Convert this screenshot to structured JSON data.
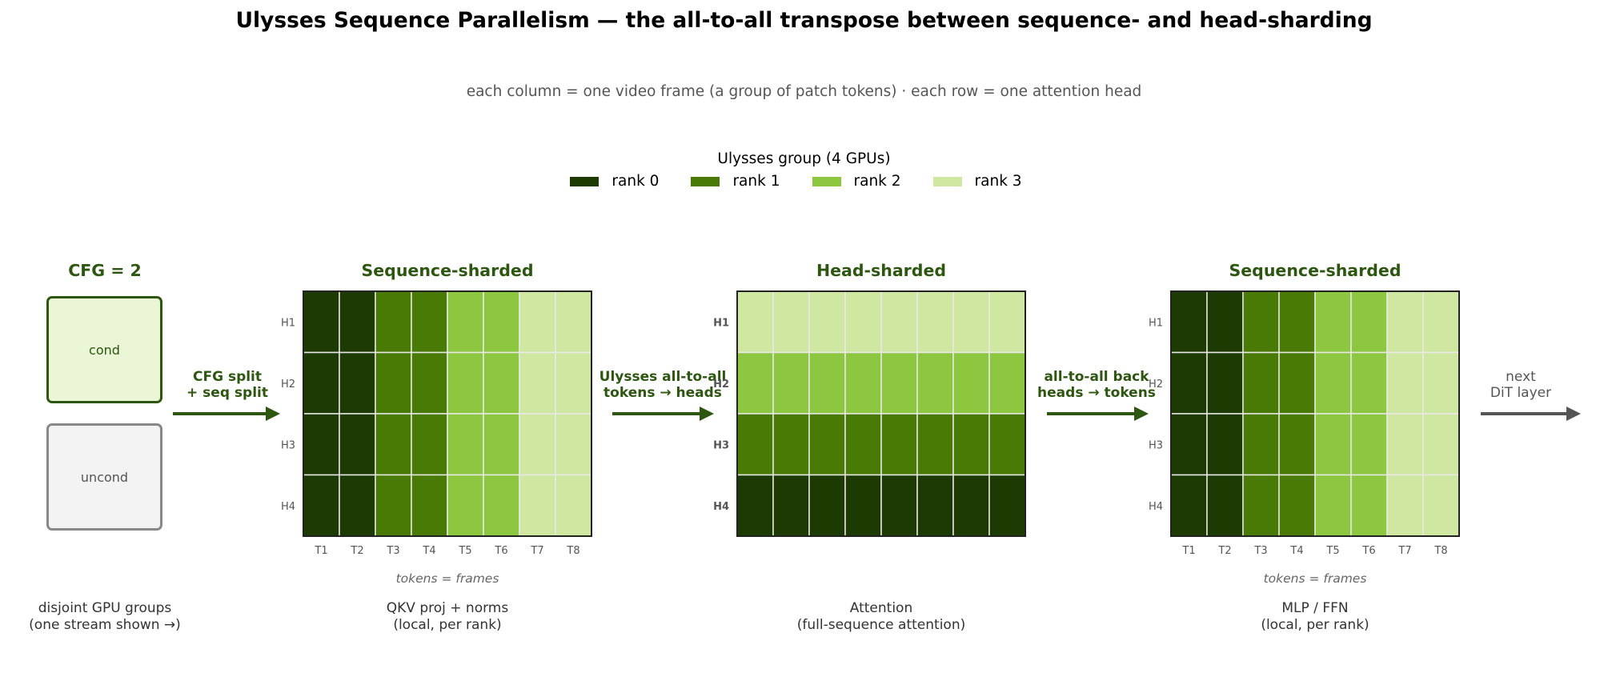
{
  "title": "Ulysses Sequence Parallelism — the all-to-all transpose between sequence- and head-sharding",
  "subtitle": "each column = one video frame (a group of patch tokens)   ·   each row = one attention head",
  "legend": {
    "title": "Ulysses group (4 GPUs)",
    "items": [
      {
        "label": "rank 0",
        "color": "#1e3a03"
      },
      {
        "label": "rank 1",
        "color": "#4a7a06"
      },
      {
        "label": "rank 2",
        "color": "#8dc63f"
      },
      {
        "label": "rank 3",
        "color": "#cfe7a0"
      }
    ]
  },
  "cfg": {
    "title": "CFG = 2",
    "cond_label": "cond",
    "uncond_label": "uncond",
    "caption_line1": "disjoint GPU groups",
    "caption_line2": "(one stream shown →)"
  },
  "arrows": [
    {
      "line1": "CFG split",
      "line2": "+ seq split"
    },
    {
      "line1": "Ulysses all-to-all",
      "line2": "tokens → heads"
    },
    {
      "line1": "all-to-all back",
      "line2": "heads → tokens"
    },
    {
      "line1": "next",
      "line2": "DiT layer"
    }
  ],
  "row_labels": [
    "H1",
    "H2",
    "H3",
    "H4"
  ],
  "col_labels": [
    "T1",
    "T2",
    "T3",
    "T4",
    "T5",
    "T6",
    "T7",
    "T8"
  ],
  "panels": [
    {
      "title": "Sequence-sharded",
      "mode": "sequence",
      "axis_caption": "tokens = frames",
      "caption_line1": "QKV proj + norms",
      "caption_line2": "(local, per rank)"
    },
    {
      "title": "Head-sharded",
      "mode": "head",
      "axis_caption": "",
      "caption_line1": "Attention",
      "caption_line2": "(full-sequence attention)"
    },
    {
      "title": "Sequence-sharded",
      "mode": "sequence",
      "axis_caption": "tokens = frames",
      "caption_line1": "MLP / FFN",
      "caption_line2": "(local, per rank)"
    }
  ]
}
